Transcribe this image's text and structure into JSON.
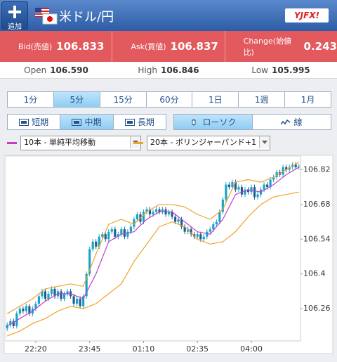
{
  "header": {
    "button_label": "追加",
    "pair": "米ドル/円",
    "logo": "YJFX!"
  },
  "quotes": [
    {
      "label": "Bid(売値)",
      "value": "106.833"
    },
    {
      "label": "Ask(買値)",
      "value": "106.837"
    },
    {
      "label": "Change(始値比)",
      "value": "0.243"
    }
  ],
  "stats": [
    {
      "label": "Open",
      "value": "106.590"
    },
    {
      "label": "High",
      "value": "106.846"
    },
    {
      "label": "Low",
      "value": "105.995"
    }
  ],
  "period_tabs": {
    "items": [
      "1分",
      "5分",
      "15分",
      "60分",
      "1日",
      "1週",
      "1月"
    ],
    "selected": 1
  },
  "term_tabs": {
    "items": [
      "短期",
      "中期",
      "長期"
    ],
    "selected": 1
  },
  "style_tabs": {
    "items": [
      "ローソク",
      "線"
    ],
    "selected": 0
  },
  "chart_data": {
    "type": "candlestick",
    "up_color": "#17a3cc",
    "down_color": "#1c5f8f",
    "ylim": [
      106.13,
      106.875
    ],
    "yticks": [
      106.82,
      106.68,
      106.54,
      106.4,
      106.26
    ],
    "xlim": [
      -0.5,
      92.5
    ],
    "xticks": [
      {
        "value": 9,
        "label": "22:20"
      },
      {
        "value": 26,
        "label": "23:45"
      },
      {
        "value": 43,
        "label": "01:10"
      },
      {
        "value": 60,
        "label": "02:35"
      },
      {
        "value": 77,
        "label": "04:00"
      }
    ],
    "open": [
      106.18,
      106.195,
      106.21,
      106.19,
      106.24,
      106.26,
      106.25,
      106.27,
      106.24,
      106.26,
      106.28,
      106.31,
      106.33,
      106.3,
      106.32,
      106.34,
      106.31,
      106.33,
      106.3,
      106.32,
      106.33,
      106.31,
      106.28,
      106.3,
      106.27,
      106.31,
      106.4,
      106.5,
      106.53,
      106.51,
      106.55,
      106.56,
      106.54,
      106.57,
      106.58,
      106.55,
      106.56,
      106.58,
      106.55,
      106.57,
      106.59,
      106.62,
      106.64,
      106.61,
      106.65,
      106.66,
      106.64,
      106.65,
      106.66,
      106.65,
      106.66,
      106.64,
      106.65,
      106.63,
      106.61,
      106.62,
      106.59,
      106.57,
      106.58,
      106.56,
      106.55,
      106.56,
      106.54,
      106.55,
      106.57,
      106.58,
      106.6,
      106.61,
      106.65,
      106.7,
      106.76,
      106.75,
      106.77,
      106.74,
      106.75,
      106.72,
      106.74,
      106.73,
      106.75,
      106.71,
      106.72,
      106.74,
      106.76,
      106.75,
      106.78,
      106.79,
      106.81,
      106.8,
      106.83,
      106.82,
      106.83,
      106.84,
      106.83
    ],
    "high": [
      106.205,
      106.22,
      106.22,
      106.25,
      106.27,
      106.27,
      106.28,
      106.28,
      106.27,
      106.29,
      106.32,
      106.34,
      106.34,
      106.33,
      106.35,
      106.35,
      106.34,
      106.34,
      106.33,
      106.34,
      106.34,
      106.32,
      106.31,
      106.31,
      106.32,
      106.41,
      106.51,
      106.54,
      106.54,
      106.56,
      106.57,
      106.57,
      106.58,
      106.59,
      106.59,
      106.57,
      106.59,
      106.59,
      106.58,
      106.6,
      106.63,
      106.65,
      106.65,
      106.66,
      106.67,
      106.67,
      106.66,
      106.67,
      106.67,
      106.67,
      106.67,
      106.66,
      106.66,
      106.64,
      106.63,
      106.63,
      106.6,
      106.59,
      106.59,
      106.57,
      106.57,
      106.57,
      106.56,
      106.58,
      106.59,
      106.61,
      106.62,
      106.66,
      106.71,
      106.77,
      106.77,
      106.78,
      106.78,
      106.76,
      106.76,
      106.75,
      106.75,
      106.76,
      106.76,
      106.73,
      106.75,
      106.77,
      106.77,
      106.79,
      106.8,
      106.82,
      106.82,
      106.84,
      106.84,
      106.84,
      106.85,
      106.85,
      106.843
    ],
    "low": [
      106.17,
      106.185,
      106.18,
      106.18,
      106.23,
      106.24,
      106.24,
      106.23,
      106.23,
      106.25,
      106.27,
      106.3,
      106.29,
      106.29,
      106.31,
      106.3,
      106.3,
      106.29,
      106.29,
      106.31,
      106.3,
      106.27,
      106.27,
      106.26,
      106.26,
      106.3,
      106.39,
      106.49,
      106.5,
      106.5,
      106.54,
      106.53,
      106.53,
      106.56,
      106.54,
      106.54,
      106.55,
      106.54,
      106.54,
      106.56,
      106.58,
      106.61,
      106.6,
      106.6,
      106.64,
      106.63,
      106.63,
      106.64,
      106.64,
      106.64,
      106.63,
      106.63,
      106.62,
      106.6,
      106.6,
      106.58,
      106.56,
      106.56,
      106.55,
      106.54,
      106.54,
      106.53,
      106.53,
      106.54,
      106.56,
      106.57,
      106.59,
      106.6,
      106.64,
      106.69,
      106.74,
      106.74,
      106.73,
      106.73,
      106.71,
      106.71,
      106.72,
      106.72,
      106.7,
      106.7,
      106.71,
      106.73,
      106.74,
      106.74,
      106.77,
      106.78,
      106.79,
      106.79,
      106.81,
      106.81,
      106.82,
      106.82,
      106.82
    ],
    "close": [
      106.195,
      106.21,
      106.19,
      106.24,
      106.26,
      106.25,
      106.27,
      106.24,
      106.26,
      106.28,
      106.31,
      106.33,
      106.3,
      106.32,
      106.34,
      106.31,
      106.33,
      106.3,
      106.32,
      106.33,
      106.31,
      106.28,
      106.3,
      106.27,
      106.31,
      106.4,
      106.5,
      106.53,
      106.51,
      106.55,
      106.56,
      106.54,
      106.57,
      106.58,
      106.55,
      106.56,
      106.58,
      106.55,
      106.57,
      106.59,
      106.62,
      106.64,
      106.61,
      106.65,
      106.66,
      106.64,
      106.65,
      106.66,
      106.65,
      106.66,
      106.64,
      106.65,
      106.63,
      106.61,
      106.62,
      106.59,
      106.57,
      106.58,
      106.56,
      106.55,
      106.56,
      106.54,
      106.55,
      106.57,
      106.58,
      106.6,
      106.61,
      106.65,
      106.7,
      106.76,
      106.75,
      106.77,
      106.74,
      106.75,
      106.72,
      106.74,
      106.73,
      106.75,
      106.71,
      106.72,
      106.74,
      106.76,
      106.75,
      106.78,
      106.79,
      106.81,
      106.8,
      106.83,
      106.82,
      106.83,
      106.84,
      106.83,
      106.833
    ],
    "line_x": [
      0,
      4,
      8,
      12,
      16,
      20,
      24,
      28,
      32,
      36,
      40,
      44,
      48,
      52,
      56,
      60,
      64,
      68,
      72,
      76,
      80,
      84,
      88,
      92
    ],
    "indicators": [
      {
        "name": "10本 - 単純平均移動",
        "color": "#c43fc4",
        "lines": [
          [
            106.19,
            106.22,
            106.25,
            106.29,
            106.32,
            106.32,
            106.3,
            106.4,
            106.53,
            106.56,
            106.57,
            106.62,
            106.65,
            106.65,
            106.61,
            106.57,
            106.56,
            106.62,
            106.72,
            106.74,
            106.73,
            106.76,
            106.8,
            106.83
          ]
        ]
      },
      {
        "name": "20本 - ボリンジャーバンド+1",
        "color": "#f0a22a",
        "lines": [
          [
            106.24,
            106.27,
            106.3,
            106.34,
            106.35,
            106.36,
            106.35,
            106.48,
            106.6,
            106.62,
            106.6,
            106.65,
            106.68,
            106.68,
            106.67,
            106.64,
            106.62,
            106.66,
            106.77,
            106.78,
            106.77,
            106.79,
            106.82,
            106.85
          ],
          [
            106.15,
            106.17,
            106.2,
            106.22,
            106.25,
            106.27,
            106.26,
            106.28,
            106.32,
            106.36,
            106.45,
            106.52,
            106.59,
            106.61,
            106.59,
            106.54,
            106.52,
            106.53,
            106.57,
            106.63,
            106.68,
            106.71,
            106.72,
            106.73
          ]
        ]
      }
    ]
  }
}
